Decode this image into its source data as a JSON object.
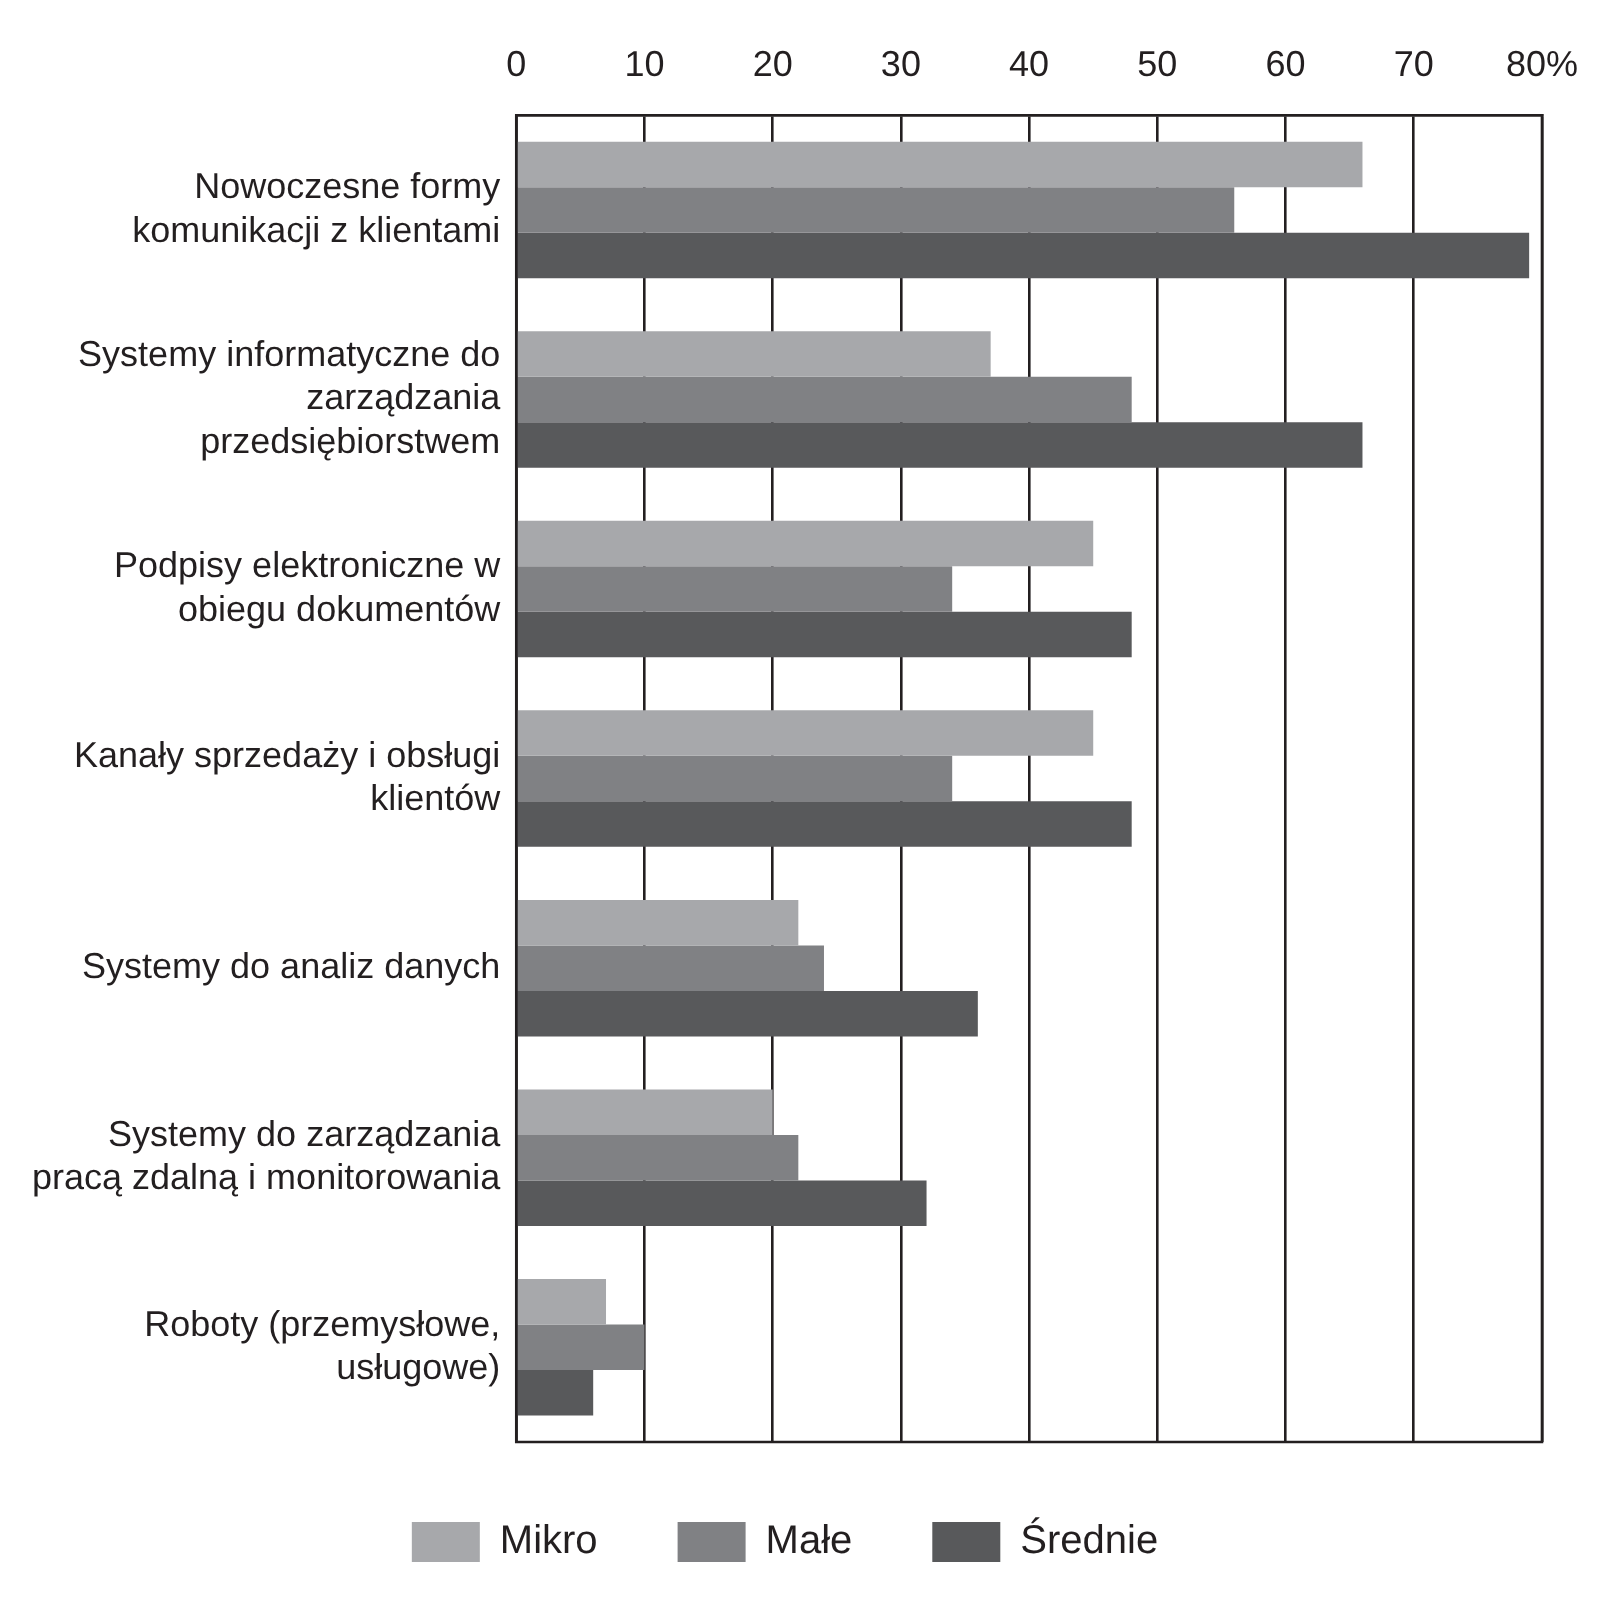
{
  "chart_data": {
    "type": "bar",
    "orientation": "horizontal",
    "categories": [
      "Nowoczesne formy komunikacji z klientami",
      "Systemy informatyczne do zarządzania przedsiębiorstwem",
      "Podpisy elektroniczne w obiegu dokumentów",
      "Kanały sprzedaży i obsługi klientów",
      "Systemy do analiz danych",
      "Systemy do zarządzania pracą zdalną i monitorowania",
      "Roboty (przemysłowe, usługowe)"
    ],
    "series": [
      {
        "name": "Mikro",
        "color": "#a7a8ab",
        "values": [
          66,
          37,
          45,
          45,
          22,
          20,
          7
        ]
      },
      {
        "name": "Małe",
        "color": "#808184",
        "values": [
          56,
          48,
          34,
          34,
          24,
          22,
          10
        ]
      },
      {
        "name": "Średnie",
        "color": "#58595b",
        "values": [
          79,
          66,
          48,
          48,
          36,
          32,
          6
        ]
      }
    ],
    "xlim": [
      0,
      80
    ],
    "xticks": [
      0,
      10,
      20,
      30,
      40,
      50,
      60,
      70,
      {
        "value": 80,
        "label": "80%"
      }
    ],
    "grid": "x",
    "legend": "bottom"
  }
}
